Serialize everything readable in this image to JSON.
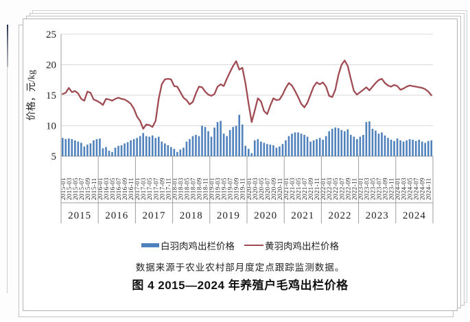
{
  "page": {
    "figure_title": "图 4 2015—2024 年养殖户毛鸡出栏价格",
    "source_note": "数据来源于农业农村部月度定点跟踪监测数据。"
  },
  "legend": {
    "bar_label": "白羽肉鸡出栏价格",
    "line_label": "黄羽肉鸡出栏价格"
  },
  "colors": {
    "bar": "#4f81bd",
    "line": "#a04a52",
    "gridline": "#d9d9d9",
    "axis": "#9c9c9c",
    "text": "#1f1f1f"
  },
  "chart_data": {
    "type": "bar+line",
    "title": "图 4 2015—2024 年养殖户毛鸡出栏价格",
    "xlabel": "",
    "ylabel": "价格，元/kg",
    "ylim": [
      5,
      25
    ],
    "yticks": [
      5,
      10,
      15,
      20,
      25
    ],
    "grid": true,
    "legend_position": "bottom",
    "years": [
      "2015",
      "2016",
      "2017",
      "2018",
      "2019",
      "2020",
      "2021",
      "2022",
      "2023",
      "2024"
    ],
    "x_tick_labels": [
      "2015-01",
      "2015-03",
      "2015-05",
      "2015-07",
      "2015-09",
      "2015-11",
      "2016-01",
      "2016-03",
      "2016-05",
      "2016-07",
      "2016-09",
      "2016-11",
      "2017-01",
      "2017-03",
      "2017-05",
      "2017-07",
      "2017-09",
      "2017-11",
      "2018-01",
      "2018-03",
      "2018-05",
      "2018-07",
      "2018-09",
      "2018-11",
      "2019-01",
      "2019-03",
      "2019-05",
      "2019-07",
      "2019-09",
      "2019-11",
      "2020-01",
      "2020-03",
      "2020-05",
      "2020-07",
      "2020-09",
      "2020-11",
      "2021-01",
      "2021-03",
      "2021-05",
      "2021-07",
      "2021-09",
      "2021-11",
      "2022-01",
      "2022-03",
      "2022-05",
      "2022-07",
      "2022-09",
      "2022-11",
      "2023-01",
      "2023-03",
      "2023-05",
      "2023-07",
      "2023-09",
      "2023-11",
      "2024-01",
      "2024-03",
      "2024-05",
      "2024-07",
      "2024-09",
      "2024-11"
    ],
    "series": [
      {
        "name": "白羽肉鸡出栏价格",
        "type": "bar",
        "color": "#4f81bd",
        "values": [
          8.0,
          7.8,
          7.9,
          7.8,
          7.6,
          7.4,
          7.2,
          6.6,
          6.9,
          7.1,
          7.6,
          7.8,
          7.9,
          6.3,
          6.5,
          5.9,
          5.7,
          6.4,
          6.7,
          6.8,
          7.1,
          7.3,
          7.6,
          7.8,
          8.0,
          8.3,
          8.8,
          8.3,
          8.2,
          8.4,
          8.0,
          8.2,
          7.4,
          7.1,
          6.8,
          6.5,
          6.2,
          5.7,
          6.1,
          6.4,
          7.4,
          7.8,
          8.3,
          8.5,
          8.3,
          10.0,
          9.8,
          9.1,
          8.2,
          9.7,
          10.6,
          10.8,
          8.7,
          8.3,
          9.3,
          9.8,
          10.0,
          11.8,
          10.2,
          6.7,
          6.2,
          5.5,
          7.6,
          7.8,
          7.4,
          7.2,
          7.0,
          6.9,
          6.8,
          6.4,
          6.6,
          7.0,
          7.6,
          8.3,
          8.7,
          8.9,
          8.9,
          8.7,
          8.5,
          8.2,
          7.4,
          7.6,
          7.8,
          8.0,
          7.7,
          8.3,
          9.1,
          9.5,
          9.7,
          9.6,
          9.3,
          9.1,
          9.4,
          8.5,
          8.2,
          7.8,
          8.2,
          8.5,
          10.6,
          10.7,
          9.5,
          9.2,
          8.7,
          8.9,
          8.4,
          8.0,
          7.7,
          7.5,
          7.9,
          7.6,
          7.4,
          7.6,
          7.8,
          7.7,
          7.5,
          7.7,
          7.4,
          7.2,
          7.5,
          7.6
        ]
      },
      {
        "name": "黄羽肉鸡出栏价格",
        "type": "line",
        "color": "#a04a52",
        "values": [
          15.2,
          15.4,
          16.2,
          15.5,
          15.7,
          15.3,
          14.4,
          14.1,
          15.6,
          15.4,
          14.3,
          14.1,
          13.8,
          13.4,
          14.4,
          14.3,
          14.1,
          14.4,
          14.6,
          14.4,
          14.3,
          14.0,
          13.6,
          12.8,
          11.5,
          10.8,
          9.5,
          10.2,
          10.1,
          9.8,
          10.8,
          14.4,
          16.8,
          17.6,
          17.7,
          17.6,
          16.5,
          16.4,
          15.5,
          14.6,
          14.2,
          13.5,
          13.9,
          15.3,
          16.4,
          16.3,
          15.6,
          15.1,
          14.9,
          15.2,
          16.4,
          16.8,
          16.5,
          17.7,
          18.8,
          19.8,
          20.6,
          19.2,
          19.5,
          17.0,
          13.6,
          10.6,
          12.5,
          14.5,
          14.0,
          12.4,
          11.9,
          13.3,
          14.5,
          14.2,
          14.3,
          15.1,
          16.2,
          17.0,
          16.6,
          15.7,
          14.7,
          13.6,
          13.0,
          13.8,
          15.1,
          16.4,
          17.1,
          16.8,
          17.1,
          16.4,
          14.9,
          14.7,
          15.9,
          18.3,
          20.0,
          20.7,
          19.8,
          17.7,
          15.7,
          15.1,
          15.5,
          15.9,
          16.3,
          15.8,
          16.4,
          17.0,
          17.5,
          17.7,
          17.0,
          16.6,
          16.4,
          16.7,
          16.5,
          15.9,
          16.1,
          16.4,
          16.6,
          16.5,
          16.4,
          16.3,
          16.2,
          16.0,
          15.6,
          15.0
        ]
      }
    ]
  }
}
